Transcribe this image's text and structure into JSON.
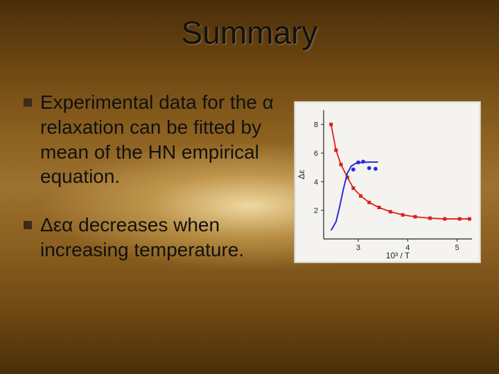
{
  "title": "Summary",
  "bullets": [
    {
      "text": "Experimental data for the α relaxation can be fitted by mean of the HN empirical equation."
    },
    {
      "text": "Δεα decreases when increasing temperature."
    }
  ],
  "chart": {
    "type": "scatter+line",
    "background_color": "#f5f3ef",
    "axis_color": "#222222",
    "tick_color": "#222222",
    "tick_fontsize": 11,
    "label_fontsize": 12,
    "xlim": [
      2.3,
      5.3
    ],
    "ylim": [
      0,
      9
    ],
    "xticks": [
      3,
      4,
      5
    ],
    "yticks": [
      2,
      4,
      6,
      8
    ],
    "x_label": "10³ / T",
    "y_label": "Δε",
    "series_red": {
      "color": "#dc1e1e",
      "marker": "square",
      "marker_size": 5,
      "line_width": 1.8,
      "points": [
        [
          2.45,
          8.0
        ],
        [
          2.55,
          6.2
        ],
        [
          2.65,
          5.2
        ],
        [
          2.78,
          4.3
        ],
        [
          2.9,
          3.55
        ],
        [
          3.05,
          3.0
        ],
        [
          3.22,
          2.55
        ],
        [
          3.42,
          2.2
        ],
        [
          3.65,
          1.9
        ],
        [
          3.9,
          1.68
        ],
        [
          4.15,
          1.55
        ],
        [
          4.45,
          1.45
        ],
        [
          4.75,
          1.4
        ],
        [
          5.05,
          1.4
        ],
        [
          5.25,
          1.4
        ]
      ]
    },
    "series_blue": {
      "color": "#2a2adc",
      "marker": "circle",
      "marker_size": 4,
      "line_width": 2.0,
      "line_points": [
        [
          2.45,
          0.6
        ],
        [
          2.55,
          1.2
        ],
        [
          2.62,
          2.2
        ],
        [
          2.7,
          3.5
        ],
        [
          2.78,
          4.6
        ],
        [
          2.86,
          5.1
        ],
        [
          2.96,
          5.3
        ],
        [
          3.1,
          5.35
        ],
        [
          3.25,
          5.37
        ],
        [
          3.4,
          5.37
        ]
      ],
      "scatter_points": [
        [
          2.9,
          4.85
        ],
        [
          3.0,
          5.35
        ],
        [
          3.1,
          5.4
        ],
        [
          3.22,
          4.95
        ],
        [
          3.35,
          4.9
        ]
      ]
    }
  }
}
